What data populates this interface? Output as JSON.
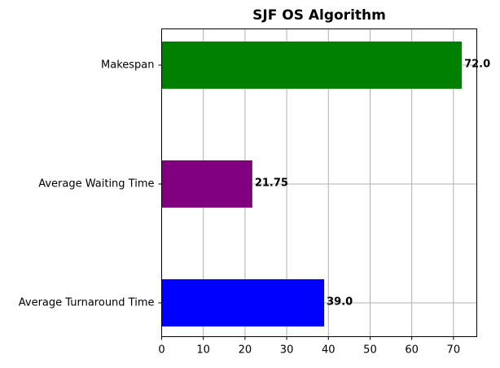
{
  "chart_data": {
    "type": "bar",
    "orientation": "horizontal",
    "title": "SJF OS Algorithm",
    "xlabel": "",
    "ylabel": "",
    "categories": [
      "Average Turnaround Time",
      "Average Waiting Time",
      "Makespan"
    ],
    "values": [
      39.0,
      21.75,
      72.0
    ],
    "value_labels": [
      "39.0",
      "21.75",
      "72.0"
    ],
    "colors": [
      "#0000ff",
      "#800080",
      "#008000"
    ],
    "xlim": [
      0,
      75.6
    ],
    "xticks": [
      0,
      10,
      20,
      30,
      40,
      50,
      60,
      70
    ],
    "grid": true,
    "legend": false
  }
}
